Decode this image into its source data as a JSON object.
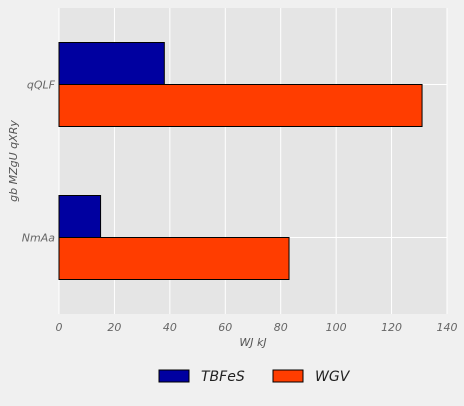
{
  "chart_data": {
    "type": "bar",
    "orientation": "horizontal",
    "categories": [
      "NmAa",
      "qQLF"
    ],
    "series": [
      {
        "name": "TBFeS",
        "values": [
          15,
          38
        ],
        "color": "#0000a0"
      },
      {
        "name": "WGV",
        "values": [
          83,
          131
        ],
        "color": "#ff3d00"
      }
    ],
    "xlabel": "WJ kJ",
    "ylabel": "gb MZgU qXRy",
    "xlim": [
      0,
      140
    ],
    "xticks": [
      0,
      20,
      40,
      60,
      80,
      100,
      120,
      140
    ],
    "grid": true,
    "legend": "bottom-center",
    "colors": {
      "background": "#f0f0f0",
      "plot_background": "#e5e5e5",
      "grid": "#ffffff"
    }
  }
}
